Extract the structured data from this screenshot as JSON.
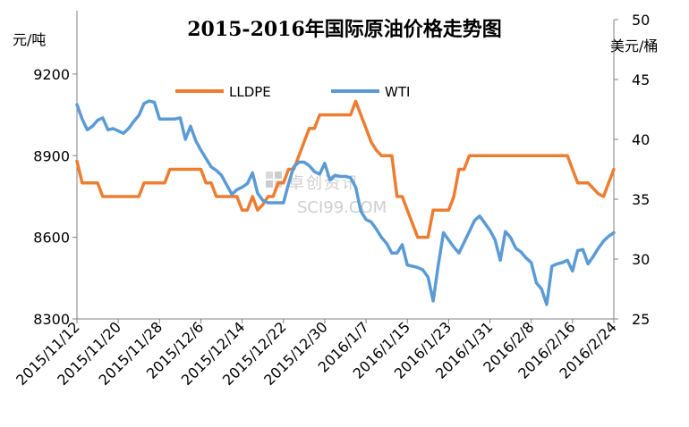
{
  "chart_data": {
    "type": "line",
    "title": "2015-2016年国际原油价格走势图",
    "left_axis_unit": "元/吨",
    "right_axis_unit": "美元/桶",
    "left_axis": {
      "ticks": [
        8300,
        8600,
        8900,
        9200
      ],
      "min": 8300,
      "max": 9400
    },
    "right_axis": {
      "ticks": [
        25,
        30,
        35,
        40,
        45,
        50
      ],
      "min": 25,
      "max": 50
    },
    "x_tick_labels": [
      "2015/11/12",
      "2015/11/20",
      "2015/11/28",
      "2015/12/6",
      "2015/12/14",
      "2015/12/22",
      "2015/12/30",
      "2016/1/7",
      "2016/1/15",
      "2016/1/23",
      "2016/1/31",
      "2016/2/8",
      "2016/2/16",
      "2016/2/24"
    ],
    "x_start": "2015/11/12",
    "x_end": "2016/2/24",
    "legend_position": "top",
    "series": [
      {
        "name": "LLDPE",
        "axis": "left",
        "color": "#ED7D31",
        "points": [
          {
            "date": "2015/11/12",
            "value": 8880
          },
          {
            "date": "2015/11/13",
            "value": 8800
          },
          {
            "date": "2015/11/14",
            "value": 8800
          },
          {
            "date": "2015/11/15",
            "value": 8800
          },
          {
            "date": "2015/11/16",
            "value": 8800
          },
          {
            "date": "2015/11/17",
            "value": 8750
          },
          {
            "date": "2015/11/18",
            "value": 8750
          },
          {
            "date": "2015/11/19",
            "value": 8750
          },
          {
            "date": "2015/11/20",
            "value": 8750
          },
          {
            "date": "2015/11/21",
            "value": 8750
          },
          {
            "date": "2015/11/22",
            "value": 8750
          },
          {
            "date": "2015/11/23",
            "value": 8750
          },
          {
            "date": "2015/11/24",
            "value": 8750
          },
          {
            "date": "2015/11/25",
            "value": 8800
          },
          {
            "date": "2015/11/26",
            "value": 8800
          },
          {
            "date": "2015/11/27",
            "value": 8800
          },
          {
            "date": "2015/11/28",
            "value": 8800
          },
          {
            "date": "2015/11/29",
            "value": 8800
          },
          {
            "date": "2015/11/30",
            "value": 8850
          },
          {
            "date": "2015/12/1",
            "value": 8850
          },
          {
            "date": "2015/12/2",
            "value": 8850
          },
          {
            "date": "2015/12/3",
            "value": 8850
          },
          {
            "date": "2015/12/4",
            "value": 8850
          },
          {
            "date": "2015/12/5",
            "value": 8850
          },
          {
            "date": "2015/12/6",
            "value": 8850
          },
          {
            "date": "2015/12/7",
            "value": 8800
          },
          {
            "date": "2015/12/8",
            "value": 8800
          },
          {
            "date": "2015/12/9",
            "value": 8750
          },
          {
            "date": "2015/12/10",
            "value": 8750
          },
          {
            "date": "2015/12/11",
            "value": 8750
          },
          {
            "date": "2015/12/12",
            "value": 8750
          },
          {
            "date": "2015/12/13",
            "value": 8750
          },
          {
            "date": "2015/12/14",
            "value": 8700
          },
          {
            "date": "2015/12/15",
            "value": 8700
          },
          {
            "date": "2015/12/16",
            "value": 8750
          },
          {
            "date": "2015/12/17",
            "value": 8700
          },
          {
            "date": "2015/12/18",
            "value": 8720
          },
          {
            "date": "2015/12/19",
            "value": 8750
          },
          {
            "date": "2015/12/20",
            "value": 8750
          },
          {
            "date": "2015/12/21",
            "value": 8800
          },
          {
            "date": "2015/12/22",
            "value": 8800
          },
          {
            "date": "2015/12/23",
            "value": 8850
          },
          {
            "date": "2015/12/24",
            "value": 8850
          },
          {
            "date": "2015/12/25",
            "value": 8900
          },
          {
            "date": "2015/12/26",
            "value": 8950
          },
          {
            "date": "2015/12/27",
            "value": 9000
          },
          {
            "date": "2015/12/28",
            "value": 9000
          },
          {
            "date": "2015/12/29",
            "value": 9050
          },
          {
            "date": "2015/12/30",
            "value": 9050
          },
          {
            "date": "2015/12/31",
            "value": 9050
          },
          {
            "date": "2016/1/1",
            "value": 9050
          },
          {
            "date": "2016/1/2",
            "value": 9050
          },
          {
            "date": "2016/1/3",
            "value": 9050
          },
          {
            "date": "2016/1/4",
            "value": 9050
          },
          {
            "date": "2016/1/5",
            "value": 9100
          },
          {
            "date": "2016/1/6",
            "value": 9050
          },
          {
            "date": "2016/1/7",
            "value": 9000
          },
          {
            "date": "2016/1/8",
            "value": 8950
          },
          {
            "date": "2016/1/9",
            "value": 8920
          },
          {
            "date": "2016/1/10",
            "value": 8900
          },
          {
            "date": "2016/1/11",
            "value": 8900
          },
          {
            "date": "2016/1/12",
            "value": 8900
          },
          {
            "date": "2016/1/13",
            "value": 8750
          },
          {
            "date": "2016/1/14",
            "value": 8750
          },
          {
            "date": "2016/1/15",
            "value": 8700
          },
          {
            "date": "2016/1/16",
            "value": 8650
          },
          {
            "date": "2016/1/17",
            "value": 8600
          },
          {
            "date": "2016/1/18",
            "value": 8600
          },
          {
            "date": "2016/1/19",
            "value": 8600
          },
          {
            "date": "2016/1/20",
            "value": 8700
          },
          {
            "date": "2016/1/21",
            "value": 8700
          },
          {
            "date": "2016/1/22",
            "value": 8700
          },
          {
            "date": "2016/1/23",
            "value": 8700
          },
          {
            "date": "2016/1/24",
            "value": 8750
          },
          {
            "date": "2016/1/25",
            "value": 8850
          },
          {
            "date": "2016/1/26",
            "value": 8850
          },
          {
            "date": "2016/1/27",
            "value": 8900
          },
          {
            "date": "2016/1/28",
            "value": 8900
          },
          {
            "date": "2016/1/29",
            "value": 8900
          },
          {
            "date": "2016/1/30",
            "value": 8900
          },
          {
            "date": "2016/1/31",
            "value": 8900
          },
          {
            "date": "2016/2/1",
            "value": 8900
          },
          {
            "date": "2016/2/2",
            "value": 8900
          },
          {
            "date": "2016/2/3",
            "value": 8900
          },
          {
            "date": "2016/2/4",
            "value": 8900
          },
          {
            "date": "2016/2/5",
            "value": 8900
          },
          {
            "date": "2016/2/6",
            "value": 8900
          },
          {
            "date": "2016/2/7",
            "value": 8900
          },
          {
            "date": "2016/2/8",
            "value": 8900
          },
          {
            "date": "2016/2/9",
            "value": 8900
          },
          {
            "date": "2016/2/10",
            "value": 8900
          },
          {
            "date": "2016/2/11",
            "value": 8900
          },
          {
            "date": "2016/2/12",
            "value": 8900
          },
          {
            "date": "2016/2/13",
            "value": 8900
          },
          {
            "date": "2016/2/14",
            "value": 8900
          },
          {
            "date": "2016/2/15",
            "value": 8900
          },
          {
            "date": "2016/2/16",
            "value": 8850
          },
          {
            "date": "2016/2/17",
            "value": 8800
          },
          {
            "date": "2016/2/18",
            "value": 8800
          },
          {
            "date": "2016/2/19",
            "value": 8800
          },
          {
            "date": "2016/2/20",
            "value": 8780
          },
          {
            "date": "2016/2/21",
            "value": 8760
          },
          {
            "date": "2016/2/22",
            "value": 8750
          },
          {
            "date": "2016/2/23",
            "value": 8800
          },
          {
            "date": "2016/2/24",
            "value": 8850
          }
        ]
      },
      {
        "name": "WTI",
        "axis": "right",
        "color": "#5B9BD5",
        "points": [
          {
            "date": "2015/11/12",
            "value": 42.9
          },
          {
            "date": "2015/11/13",
            "value": 41.7
          },
          {
            "date": "2015/11/14",
            "value": 40.8
          },
          {
            "date": "2015/11/15",
            "value": 41.1
          },
          {
            "date": "2015/11/16",
            "value": 41.6
          },
          {
            "date": "2015/11/17",
            "value": 41.8
          },
          {
            "date": "2015/11/18",
            "value": 40.8
          },
          {
            "date": "2015/11/19",
            "value": 40.9
          },
          {
            "date": "2015/11/20",
            "value": 40.7
          },
          {
            "date": "2015/11/21",
            "value": 40.5
          },
          {
            "date": "2015/11/22",
            "value": 40.9
          },
          {
            "date": "2015/11/23",
            "value": 41.5
          },
          {
            "date": "2015/11/24",
            "value": 42.0
          },
          {
            "date": "2015/11/25",
            "value": 43.0
          },
          {
            "date": "2015/11/26",
            "value": 43.2
          },
          {
            "date": "2015/11/27",
            "value": 43.1
          },
          {
            "date": "2015/11/28",
            "value": 41.7
          },
          {
            "date": "2015/11/29",
            "value": 41.7
          },
          {
            "date": "2015/11/30",
            "value": 41.7
          },
          {
            "date": "2015/12/1",
            "value": 41.7
          },
          {
            "date": "2015/12/2",
            "value": 41.8
          },
          {
            "date": "2015/12/3",
            "value": 40.0
          },
          {
            "date": "2015/12/4",
            "value": 41.1
          },
          {
            "date": "2015/12/5",
            "value": 39.9
          },
          {
            "date": "2015/12/6",
            "value": 39.1
          },
          {
            "date": "2015/12/7",
            "value": 38.4
          },
          {
            "date": "2015/12/8",
            "value": 37.7
          },
          {
            "date": "2015/12/9",
            "value": 37.4
          },
          {
            "date": "2015/12/10",
            "value": 37.0
          },
          {
            "date": "2015/12/11",
            "value": 36.2
          },
          {
            "date": "2015/12/12",
            "value": 35.4
          },
          {
            "date": "2015/12/13",
            "value": 35.8
          },
          {
            "date": "2015/12/14",
            "value": 36.0
          },
          {
            "date": "2015/12/15",
            "value": 36.3
          },
          {
            "date": "2015/12/16",
            "value": 37.2
          },
          {
            "date": "2015/12/17",
            "value": 35.5
          },
          {
            "date": "2015/12/18",
            "value": 34.9
          },
          {
            "date": "2015/12/19",
            "value": 34.7
          },
          {
            "date": "2015/12/20",
            "value": 34.7
          },
          {
            "date": "2015/12/21",
            "value": 34.7
          },
          {
            "date": "2015/12/22",
            "value": 34.7
          },
          {
            "date": "2015/12/23",
            "value": 36.3
          },
          {
            "date": "2015/12/24",
            "value": 37.7
          },
          {
            "date": "2015/12/25",
            "value": 38.1
          },
          {
            "date": "2015/12/26",
            "value": 38.1
          },
          {
            "date": "2015/12/27",
            "value": 37.8
          },
          {
            "date": "2015/12/28",
            "value": 37.3
          },
          {
            "date": "2015/12/29",
            "value": 37.1
          },
          {
            "date": "2015/12/30",
            "value": 38.0
          },
          {
            "date": "2015/12/31",
            "value": 36.6
          },
          {
            "date": "2016/1/1",
            "value": 37.0
          },
          {
            "date": "2016/1/2",
            "value": 36.9
          },
          {
            "date": "2016/1/3",
            "value": 36.9
          },
          {
            "date": "2016/1/4",
            "value": 36.8
          },
          {
            "date": "2016/1/5",
            "value": 36.0
          },
          {
            "date": "2016/1/6",
            "value": 34.0
          },
          {
            "date": "2016/1/7",
            "value": 33.3
          },
          {
            "date": "2016/1/8",
            "value": 33.1
          },
          {
            "date": "2016/1/9",
            "value": 32.5
          },
          {
            "date": "2016/1/10",
            "value": 31.8
          },
          {
            "date": "2016/1/11",
            "value": 31.3
          },
          {
            "date": "2016/1/12",
            "value": 30.5
          },
          {
            "date": "2016/1/13",
            "value": 30.5
          },
          {
            "date": "2016/1/14",
            "value": 31.2
          },
          {
            "date": "2016/1/15",
            "value": 29.5
          },
          {
            "date": "2016/1/16",
            "value": 29.4
          },
          {
            "date": "2016/1/17",
            "value": 29.3
          },
          {
            "date": "2016/1/18",
            "value": 29.1
          },
          {
            "date": "2016/1/19",
            "value": 28.5
          },
          {
            "date": "2016/1/20",
            "value": 26.5
          },
          {
            "date": "2016/1/21",
            "value": 29.5
          },
          {
            "date": "2016/1/22",
            "value": 32.2
          },
          {
            "date": "2016/1/23",
            "value": 31.6
          },
          {
            "date": "2016/1/24",
            "value": 31.0
          },
          {
            "date": "2016/1/25",
            "value": 30.5
          },
          {
            "date": "2016/1/26",
            "value": 31.4
          },
          {
            "date": "2016/1/27",
            "value": 32.3
          },
          {
            "date": "2016/1/28",
            "value": 33.2
          },
          {
            "date": "2016/1/29",
            "value": 33.6
          },
          {
            "date": "2016/1/30",
            "value": 33.0
          },
          {
            "date": "2016/1/31",
            "value": 32.4
          },
          {
            "date": "2016/2/1",
            "value": 31.6
          },
          {
            "date": "2016/2/2",
            "value": 29.9
          },
          {
            "date": "2016/2/3",
            "value": 32.3
          },
          {
            "date": "2016/2/4",
            "value": 31.8
          },
          {
            "date": "2016/2/5",
            "value": 30.9
          },
          {
            "date": "2016/2/6",
            "value": 30.6
          },
          {
            "date": "2016/2/7",
            "value": 30.1
          },
          {
            "date": "2016/2/8",
            "value": 29.7
          },
          {
            "date": "2016/2/9",
            "value": 28.0
          },
          {
            "date": "2016/2/10",
            "value": 27.5
          },
          {
            "date": "2016/2/11",
            "value": 26.2
          },
          {
            "date": "2016/2/12",
            "value": 29.4
          },
          {
            "date": "2016/2/13",
            "value": 29.6
          },
          {
            "date": "2016/2/14",
            "value": 29.7
          },
          {
            "date": "2016/2/15",
            "value": 29.9
          },
          {
            "date": "2016/2/16",
            "value": 29.0
          },
          {
            "date": "2016/2/17",
            "value": 30.7
          },
          {
            "date": "2016/2/18",
            "value": 30.8
          },
          {
            "date": "2016/2/19",
            "value": 29.6
          },
          {
            "date": "2016/2/20",
            "value": 30.2
          },
          {
            "date": "2016/2/21",
            "value": 30.9
          },
          {
            "date": "2016/2/22",
            "value": 31.5
          },
          {
            "date": "2016/2/23",
            "value": 31.9
          },
          {
            "date": "2016/2/24",
            "value": 32.2
          }
        ]
      }
    ]
  },
  "watermark": {
    "line1": "卓创资讯",
    "line2": "SCI99.COM"
  }
}
